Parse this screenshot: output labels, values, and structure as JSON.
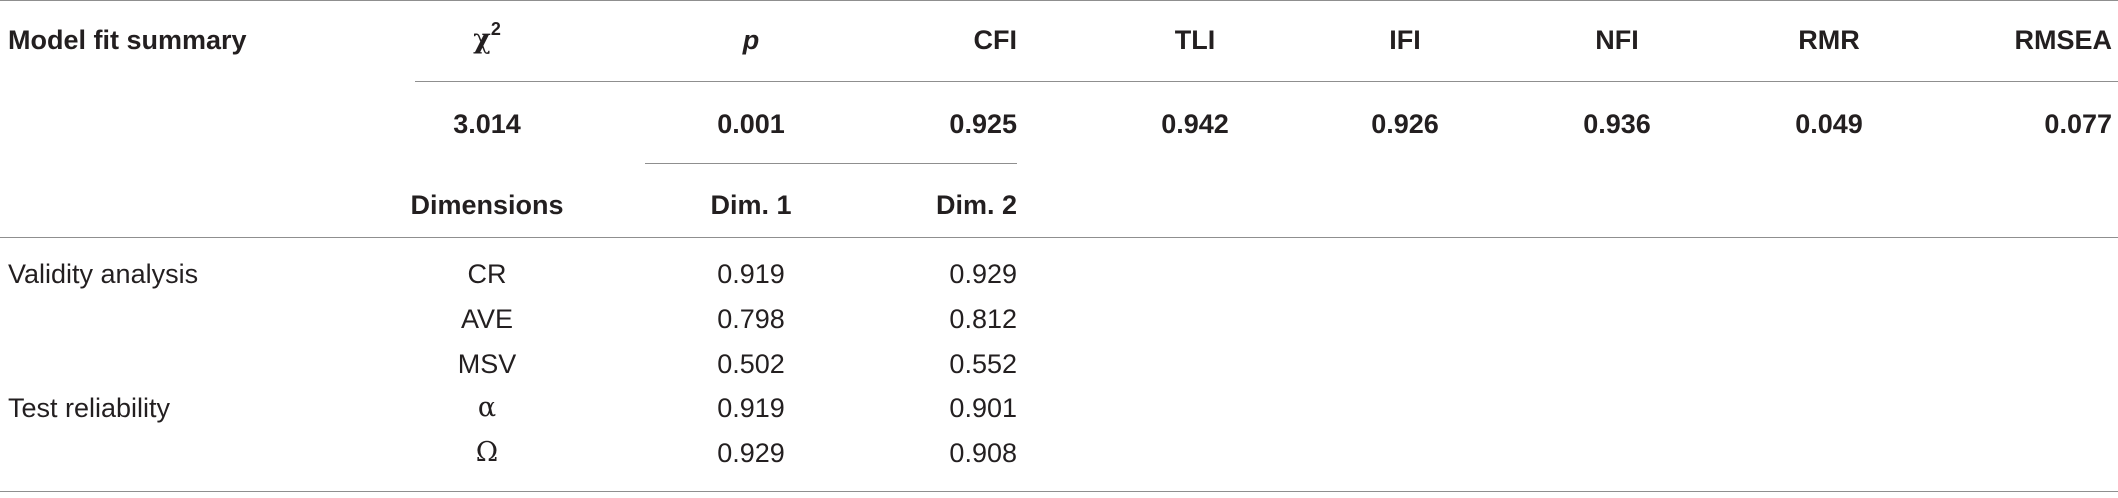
{
  "table": {
    "header": {
      "row_label": "Model fit summary",
      "chi_symbol": "χ",
      "chi_exponent": "2",
      "columns": [
        "p",
        "CFI",
        "TLI",
        "IFI",
        "NFI",
        "RMR",
        "RMSEA"
      ]
    },
    "fit_values": {
      "chi2": "3.014",
      "p": "0.001",
      "cfi": "0.925",
      "tli": "0.942",
      "ifi": "0.926",
      "nfi": "0.936",
      "rmr": "0.049",
      "rmsea": "0.077"
    },
    "dimensions_header": {
      "label": "Dimensions",
      "dim1": "Dim. 1",
      "dim2": "Dim. 2"
    },
    "sections": [
      {
        "label": "Validity analysis",
        "rows": [
          {
            "measure": "CR",
            "dim1": "0.919",
            "dim2": "0.929"
          },
          {
            "measure": "AVE",
            "dim1": "0.798",
            "dim2": "0.812"
          },
          {
            "measure": "MSV",
            "dim1": "0.502",
            "dim2": "0.552"
          }
        ]
      },
      {
        "label": "Test reliability",
        "rows": [
          {
            "measure": "α",
            "dim1": "0.919",
            "dim2": "0.901"
          },
          {
            "measure": "Ω",
            "dim1": "0.929",
            "dim2": "0.908"
          }
        ]
      }
    ]
  }
}
